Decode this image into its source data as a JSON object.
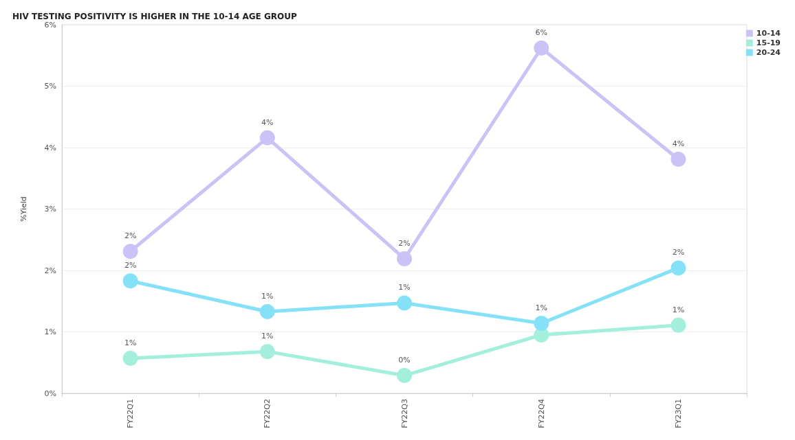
{
  "chart_data": {
    "type": "line",
    "title": "HIV TESTING POSITIVITY IS HIGHER IN THE 10-14 AGE GROUP",
    "ylabel": "%Yield",
    "categories": [
      "FY22Q1",
      "FY22Q2",
      "FY22Q3",
      "FY22Q4",
      "FY23Q1"
    ],
    "series": [
      {
        "name": "10-14",
        "color": "#cbc2f5",
        "values": [
          2.31,
          4.16,
          2.19,
          5.62,
          3.81
        ],
        "value_labels": [
          "2%",
          "4%",
          "2%",
          "6%",
          "4%"
        ]
      },
      {
        "name": "15-19",
        "color": "#a3efdc",
        "values": [
          0.57,
          0.68,
          0.29,
          0.95,
          1.11
        ],
        "value_labels": [
          "1%",
          "1%",
          "0%",
          null,
          "1%"
        ]
      },
      {
        "name": "20-24",
        "color": "#85e1f8",
        "values": [
          1.83,
          1.33,
          1.47,
          1.14,
          2.04
        ],
        "value_labels": [
          "2%",
          "1%",
          "1%",
          "1%",
          "2%"
        ]
      }
    ],
    "ylim": [
      0,
      6
    ],
    "yticks": [
      {
        "value": 0,
        "label": "0%"
      },
      {
        "value": 1,
        "label": "1%"
      },
      {
        "value": 2,
        "label": "2%"
      },
      {
        "value": 3,
        "label": "3%"
      },
      {
        "value": 4,
        "label": "4%"
      },
      {
        "value": 5,
        "label": "5%"
      },
      {
        "value": 6,
        "label": "6%"
      }
    ],
    "grid": "y",
    "legend": "top right",
    "marker": "circle",
    "line_style": "solid"
  }
}
